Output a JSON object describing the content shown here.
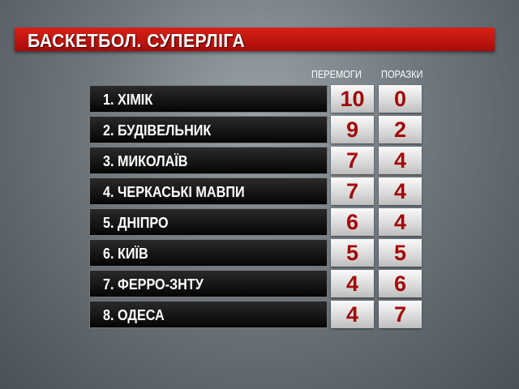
{
  "title": "БАСКЕТБОЛ. СУПЕРЛІГА",
  "headers": {
    "wins": "ПЕРЕМОГИ",
    "losses": "ПОРАЗКИ"
  },
  "colors": {
    "banner": "#c8160e",
    "numbers": "#a00a08"
  },
  "rows": [
    {
      "name": "1.  ХІМІК",
      "wins": "10",
      "losses": "0"
    },
    {
      "name": "2.  БУДІВЕЛЬНИК",
      "wins": "9",
      "losses": "2"
    },
    {
      "name": "3.  МИКОЛАЇВ",
      "wins": "7",
      "losses": "4"
    },
    {
      "name": "4.  ЧЕРКАСЬКІ МАВПИ",
      "wins": "7",
      "losses": "4"
    },
    {
      "name": "5.  ДНІПРО",
      "wins": "6",
      "losses": "4"
    },
    {
      "name": "6.  КИЇВ",
      "wins": "5",
      "losses": "5"
    },
    {
      "name": "7.  ФЕРРО-ЗНТУ",
      "wins": "4",
      "losses": "6"
    },
    {
      "name": "8.  ОДЕСА",
      "wins": "4",
      "losses": "7"
    }
  ]
}
